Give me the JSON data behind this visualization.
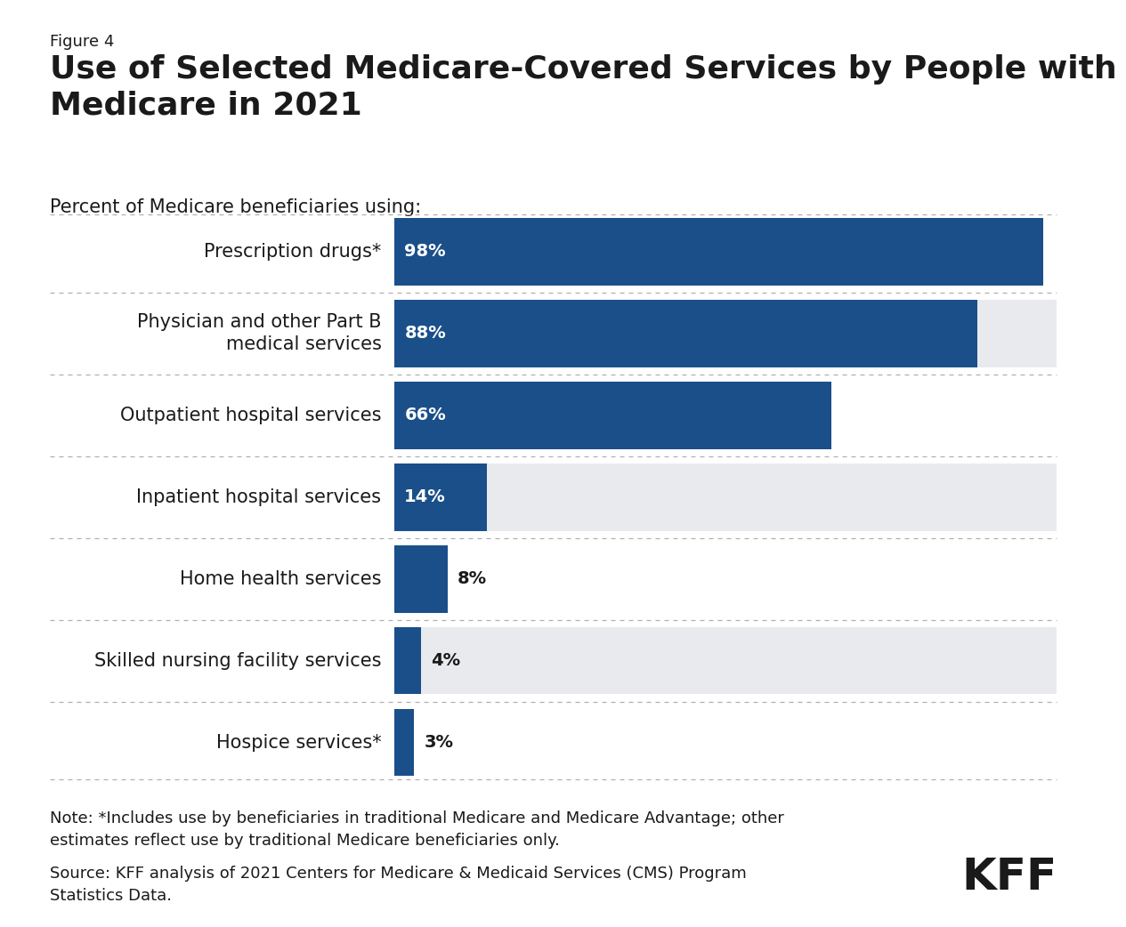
{
  "figure_label": "Figure 4",
  "title": "Use of Selected Medicare-Covered Services by People with\nMedicare in 2021",
  "subtitle": "Percent of Medicare beneficiaries using:",
  "categories": [
    "Prescription drugs*",
    "Physician and other Part B\nmedical services",
    "Outpatient hospital services",
    "Inpatient hospital services",
    "Home health services",
    "Skilled nursing facility services",
    "Hospice services*"
  ],
  "values": [
    98,
    88,
    66,
    14,
    8,
    4,
    3
  ],
  "bar_color": "#1a4f8a",
  "row_colors": [
    "#ffffff",
    "#e8eaed",
    "#ffffff",
    "#e8eaed",
    "#ffffff",
    "#e8eaed",
    "#ffffff"
  ],
  "value_labels": [
    "98%",
    "88%",
    "66%",
    "14%",
    "8%",
    "4%",
    "3%"
  ],
  "label_inside": [
    true,
    true,
    true,
    true,
    false,
    false,
    false
  ],
  "note_text": "Note: *Includes use by beneficiaries in traditional Medicare and Medicare Advantage; other\nestimates reflect use by traditional Medicare beneficiaries only.",
  "source_text": "Source: KFF analysis of 2021 Centers for Medicare & Medicaid Services (CMS) Program\nStatistics Data.",
  "background_color": "#ffffff",
  "text_color": "#1a1a1a",
  "separator_color": "#b0b0b0",
  "title_fontsize": 26,
  "figure_label_fontsize": 13,
  "subtitle_fontsize": 15,
  "category_fontsize": 15,
  "value_fontsize": 14,
  "note_fontsize": 13,
  "kff_fontsize": 36,
  "xlim": [
    0,
    100
  ]
}
